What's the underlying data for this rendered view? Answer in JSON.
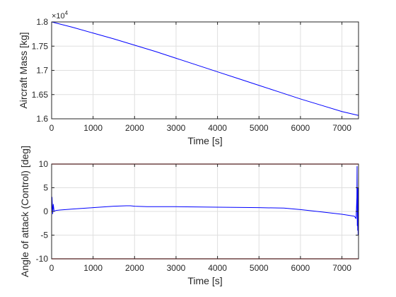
{
  "figure": {
    "background": "#ffffff",
    "axes_color": "#262626",
    "grid_color": "#dfdfdf"
  },
  "chart_data": [
    {
      "type": "line",
      "title": "",
      "xlabel": "Time [s]",
      "ylabel": "Aircraft Mass [kg]",
      "exponent_label": "×10",
      "exponent_power": "4",
      "xlim": [
        0,
        7400
      ],
      "ylim": [
        1.6,
        1.8
      ],
      "xticks": [
        0,
        1000,
        2000,
        3000,
        4000,
        5000,
        6000,
        7000
      ],
      "xtick_labels": [
        "0",
        "1000",
        "2000",
        "3000",
        "4000",
        "5000",
        "6000",
        "7000"
      ],
      "yticks": [
        1.6,
        1.65,
        1.7,
        1.75,
        1.8
      ],
      "ytick_labels": [
        "1.6",
        "1.65",
        "1.7",
        "1.75",
        "1.8"
      ],
      "grid": true,
      "series": [
        {
          "color": "#0000ff",
          "x": [
            0,
            500,
            1000,
            1500,
            2000,
            2500,
            3000,
            3500,
            4000,
            4500,
            5000,
            5500,
            6000,
            6500,
            7000,
            7200,
            7400
          ],
          "y": [
            1.8,
            1.789,
            1.777,
            1.765,
            1.752,
            1.739,
            1.725,
            1.711,
            1.697,
            1.683,
            1.669,
            1.655,
            1.641,
            1.628,
            1.615,
            1.611,
            1.607
          ]
        }
      ]
    },
    {
      "type": "line",
      "title": "",
      "xlabel": "Time [s]",
      "ylabel": "Angle of attack (Control) [deg]",
      "xlim": [
        0,
        7400
      ],
      "ylim": [
        -10,
        10
      ],
      "xticks": [
        0,
        1000,
        2000,
        3000,
        4000,
        5000,
        6000,
        7000
      ],
      "xtick_labels": [
        "0",
        "1000",
        "2000",
        "3000",
        "4000",
        "5000",
        "6000",
        "7000"
      ],
      "yticks": [
        -10,
        -5,
        0,
        5,
        10
      ],
      "ytick_labels": [
        "-10",
        "-5",
        "0",
        "5",
        "10"
      ],
      "grid": true,
      "series": [
        {
          "color": "#0000ff",
          "x": [
            0,
            10,
            25,
            40,
            60,
            100,
            200,
            500,
            1000,
            1500,
            1800,
            1900,
            2000,
            2300,
            3000,
            4000,
            5000,
            5600,
            6000,
            6500,
            7000,
            7300,
            7340,
            7350,
            7360,
            7365,
            7370,
            7375,
            7380,
            7385,
            7390,
            7395,
            7400
          ],
          "y": [
            0,
            3,
            -0.5,
            1.5,
            0,
            0.2,
            0.3,
            0.5,
            0.8,
            1.1,
            1.2,
            1.2,
            1.1,
            1.0,
            1.0,
            0.9,
            0.8,
            0.7,
            0.4,
            -0.1,
            -0.6,
            -1.0,
            -1.5,
            0.5,
            3.0,
            9.5,
            -3.0,
            2.0,
            -4.0,
            5.0,
            -5.0,
            1.0,
            -1.0
          ]
        },
        {
          "color": "#ff0000",
          "x": [
            0,
            7400
          ],
          "y": [
            10,
            10
          ]
        },
        {
          "color": "#ff0000",
          "x": [
            0,
            7400
          ],
          "y": [
            -10,
            -10
          ]
        }
      ]
    }
  ]
}
